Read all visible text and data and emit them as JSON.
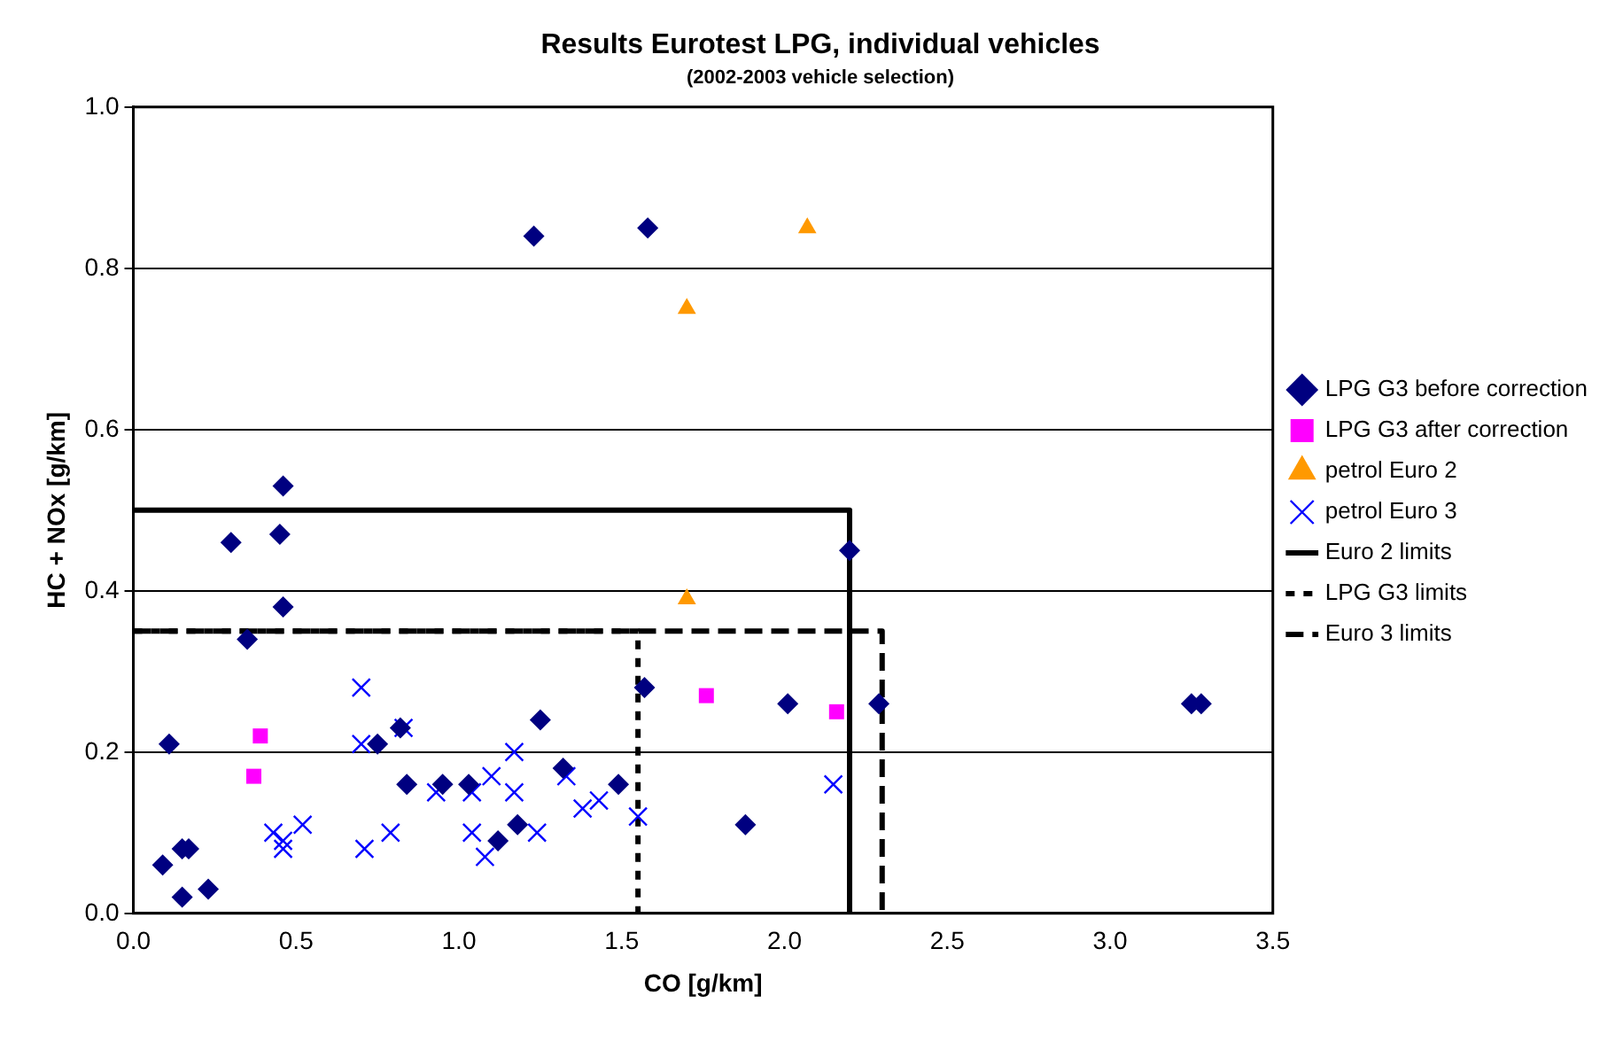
{
  "chart_data": {
    "type": "scatter",
    "title": "Results Eurotest LPG, individual vehicles",
    "subtitle": "(2002-2003 vehicle selection)",
    "xlabel": "CO [g/km]",
    "ylabel": "HC + NOx [g/km]",
    "xlim": [
      0,
      3.5
    ],
    "ylim": [
      0,
      1.0
    ],
    "xticks": [
      {
        "value": 0,
        "label": "0.0"
      },
      {
        "value": 0.5,
        "label": "0.5"
      },
      {
        "value": 1,
        "label": "1.0"
      },
      {
        "value": 1.5,
        "label": "1.5"
      },
      {
        "value": 2,
        "label": "2.0"
      },
      {
        "value": 2.5,
        "label": "2.5"
      },
      {
        "value": 3,
        "label": "3.0"
      },
      {
        "value": 3.5,
        "label": "3.5"
      }
    ],
    "yticks": [
      {
        "value": 0,
        "label": "0.0"
      },
      {
        "value": 0.2,
        "label": "0.2"
      },
      {
        "value": 0.4,
        "label": "0.4"
      },
      {
        "value": 0.6,
        "label": "0.6"
      },
      {
        "value": 0.8,
        "label": "0.8"
      },
      {
        "value": 1,
        "label": "1.0"
      }
    ],
    "grid": "y",
    "legend": "right",
    "series": [
      {
        "name": "LPG G3 before correction",
        "type": "scatter",
        "marker": "diamond",
        "color": "#000080",
        "x": [
          0.46,
          0.3,
          0.45,
          0.46,
          0.35,
          0.11,
          0.75,
          0.82,
          0.84,
          0.95,
          1.03,
          1.25,
          1.18,
          1.12,
          0.15,
          0.17,
          0.09,
          0.15,
          0.23,
          1.32,
          1.49,
          1.57,
          2.01,
          1.88,
          2.2,
          2.29,
          3.25,
          3.28,
          1.23,
          1.58
        ],
        "values": [
          0.53,
          0.46,
          0.47,
          0.38,
          0.34,
          0.21,
          0.21,
          0.23,
          0.16,
          0.16,
          0.16,
          0.24,
          0.11,
          0.09,
          0.08,
          0.08,
          0.06,
          0.02,
          0.03,
          0.18,
          0.16,
          0.28,
          0.26,
          0.11,
          0.45,
          0.26,
          0.26,
          0.26,
          0.84,
          0.85
        ]
      },
      {
        "name": "LPG G3 after correction",
        "type": "scatter",
        "marker": "square",
        "color": "#ff00ff",
        "x": [
          0.39,
          0.37,
          1.76,
          2.16
        ],
        "values": [
          0.22,
          0.17,
          0.27,
          0.25
        ]
      },
      {
        "name": "petrol Euro 2",
        "type": "scatter",
        "marker": "triangle",
        "color": "#ff9900",
        "x": [
          2.07,
          1.7,
          1.7
        ],
        "values": [
          0.85,
          0.75,
          0.39
        ]
      },
      {
        "name": "petrol Euro 3",
        "type": "scatter",
        "marker": "cross",
        "color": "#0000ff",
        "x": [
          0.7,
          0.7,
          0.83,
          0.43,
          0.46,
          0.52,
          0.46,
          0.71,
          0.79,
          0.93,
          1.04,
          1.04,
          1.08,
          1.1,
          1.17,
          1.17,
          1.24,
          1.33,
          1.38,
          1.43,
          1.55,
          2.15
        ],
        "values": [
          0.28,
          0.21,
          0.23,
          0.1,
          0.09,
          0.11,
          0.08,
          0.08,
          0.1,
          0.15,
          0.15,
          0.1,
          0.07,
          0.17,
          0.2,
          0.15,
          0.1,
          0.17,
          0.13,
          0.14,
          0.12,
          0.16
        ]
      },
      {
        "name": "Euro 2 limits",
        "type": "line",
        "marker": "none",
        "line_style": "solid",
        "color": "#000000",
        "x": [
          0,
          2.2,
          2.2
        ],
        "values": [
          0.5,
          0.5,
          0
        ]
      },
      {
        "name": "LPG G3 limits",
        "type": "line",
        "marker": "none",
        "line_style": "dotted",
        "color": "#000000",
        "x": [
          0,
          1.55,
          1.55
        ],
        "values": [
          0.35,
          0.35,
          0
        ]
      },
      {
        "name": "Euro 3 limits",
        "type": "line",
        "marker": "none",
        "line_style": "dashed",
        "color": "#000000",
        "x": [
          0,
          2.3,
          2.3
        ],
        "values": [
          0.35,
          0.35,
          0
        ]
      }
    ]
  }
}
